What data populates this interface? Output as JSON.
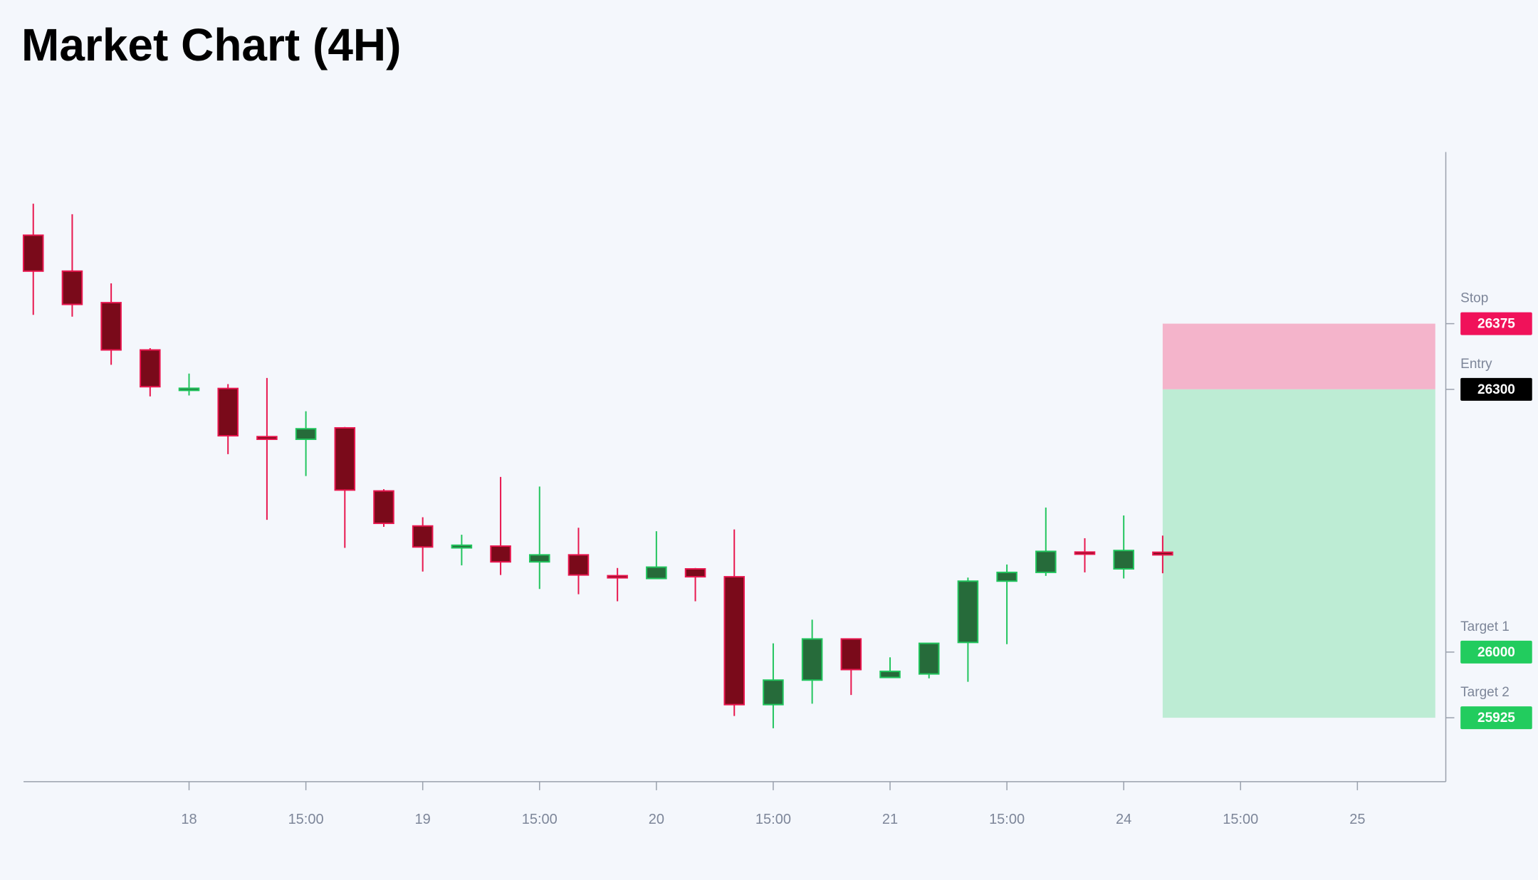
{
  "chart_data": {
    "type": "candlestick",
    "title": "Market Chart (4H)",
    "x": [
      0,
      1,
      2,
      3,
      4,
      5,
      6,
      7,
      8,
      9,
      10,
      11,
      12,
      13,
      14,
      15,
      16,
      17,
      18,
      19,
      20,
      21,
      22,
      23,
      24,
      25,
      26,
      27,
      28,
      29
    ],
    "open": [
      26476,
      26435,
      26399,
      26345,
      26299,
      26301,
      26246,
      26243,
      26256,
      26184,
      26144,
      26119,
      26121,
      26103,
      26111,
      26087,
      26084,
      26095,
      26086,
      25940,
      25968,
      26015,
      25971,
      25975,
      26011,
      26081,
      26091,
      26114,
      26095,
      26114
    ],
    "high": [
      26512,
      26500,
      26421,
      26347,
      26318,
      26306,
      26313,
      26275,
      26257,
      26186,
      26154,
      26134,
      26200,
      26189,
      26142,
      26096,
      26138,
      26096,
      26140,
      26010,
      26037,
      26015,
      25994,
      26010,
      26085,
      26100,
      26165,
      26130,
      26156,
      26133
    ],
    "low": [
      26385,
      26383,
      26328,
      26292,
      26293,
      26226,
      26151,
      26201,
      26119,
      26143,
      26092,
      26099,
      26088,
      26072,
      26066,
      26058,
      26084,
      26058,
      25927,
      25913,
      25941,
      25951,
      25971,
      25970,
      25966,
      26009,
      26087,
      26091,
      26084,
      26090
    ],
    "close": [
      26435,
      26397,
      26345,
      26303,
      26301,
      26247,
      26243,
      26255,
      26185,
      26147,
      26120,
      26122,
      26103,
      26111,
      26088,
      26085,
      26097,
      26086,
      25940,
      25968,
      26015,
      25980,
      25978,
      26010,
      26081,
      26091,
      26115,
      26112,
      26116,
      26111
    ],
    "up_color": "#22c55e",
    "up_fill": "#266b3a",
    "down_color": "#e8174f",
    "down_fill": "#7a0a1a",
    "xlim": [
      -0.25,
      36.27
    ],
    "ylim": [
      25852,
      26571
    ],
    "xticks": [
      {
        "value": 4,
        "label": "18"
      },
      {
        "value": 7,
        "label": "15:00"
      },
      {
        "value": 10,
        "label": "19"
      },
      {
        "value": 13,
        "label": "15:00"
      },
      {
        "value": 16,
        "label": "20"
      },
      {
        "value": 19,
        "label": "15:00"
      },
      {
        "value": 22,
        "label": "21"
      },
      {
        "value": 25,
        "label": "15:00"
      },
      {
        "value": 28,
        "label": "24"
      },
      {
        "value": 31,
        "label": "15:00"
      },
      {
        "value": 34,
        "label": "25"
      }
    ],
    "levels": [
      {
        "name": "Stop",
        "value": 26375,
        "color": "#f0125a"
      },
      {
        "name": "Entry",
        "value": 26300,
        "color": "#000000"
      },
      {
        "name": "Target 1",
        "value": 26000,
        "color": "#22cc5e"
      },
      {
        "name": "Target 2",
        "value": 25925,
        "color": "#22cc5e"
      }
    ],
    "position_x": [
      29,
      36
    ],
    "risk_color": "#f4b4cb",
    "reward_color": "#bdecd4"
  }
}
